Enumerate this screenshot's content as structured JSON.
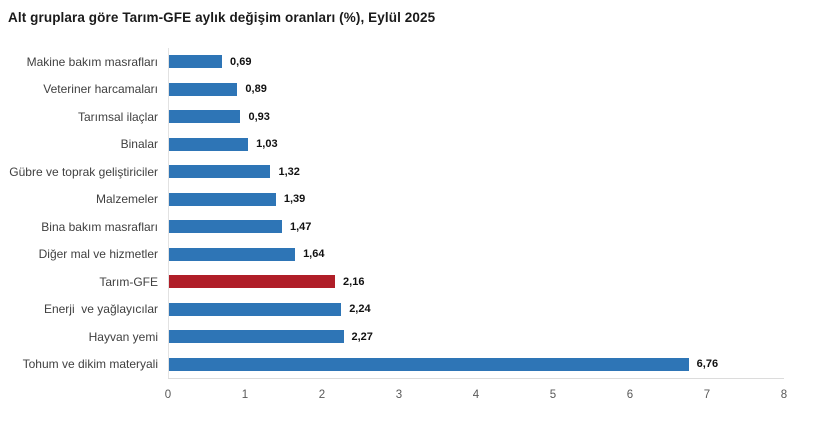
{
  "title": "Alt gruplara göre Tarım-GFE aylık değişim oranları (%), Eylül 2025",
  "chart_data": {
    "type": "bar",
    "orientation": "horizontal",
    "title": "Alt gruplara göre Tarım-GFE aylık değişim oranları (%), Eylül 2025",
    "categories": [
      "Makine bakım masrafları",
      "Veteriner harcamaları",
      "Tarımsal ilaçlar",
      "Binalar",
      "Gübre ve toprak geliştiriciler",
      "Malzemeler",
      "Bina bakım masrafları",
      "Diğer mal ve hizmetler",
      "Tarım-GFE",
      "Enerji  ve yağlayıcılar",
      "Hayvan yemi",
      "Tohum ve dikim materyali"
    ],
    "values": [
      0.69,
      0.89,
      0.93,
      1.03,
      1.32,
      1.39,
      1.47,
      1.64,
      2.16,
      2.24,
      2.27,
      6.76
    ],
    "value_labels": [
      "0,69",
      "0,89",
      "0,93",
      "1,03",
      "1,32",
      "1,39",
      "1,47",
      "1,64",
      "2,16",
      "2,24",
      "2,27",
      "6,76"
    ],
    "highlight_category": "Tarım-GFE",
    "colors": {
      "default": "#2e75b6",
      "highlight": "#b01e28",
      "axis_line": "#dcdcdc",
      "tick_text": "#595959",
      "label_text": "#404040",
      "value_text": "#111111",
      "title_text": "#1a1a1a"
    },
    "xlabel": "",
    "ylabel": "",
    "xlim": [
      0,
      8
    ],
    "x_ticks": [
      0,
      1,
      2,
      3,
      4,
      5,
      6,
      7,
      8
    ],
    "grid": false,
    "legend": "none",
    "value_labels_position": "end-of-bar"
  }
}
